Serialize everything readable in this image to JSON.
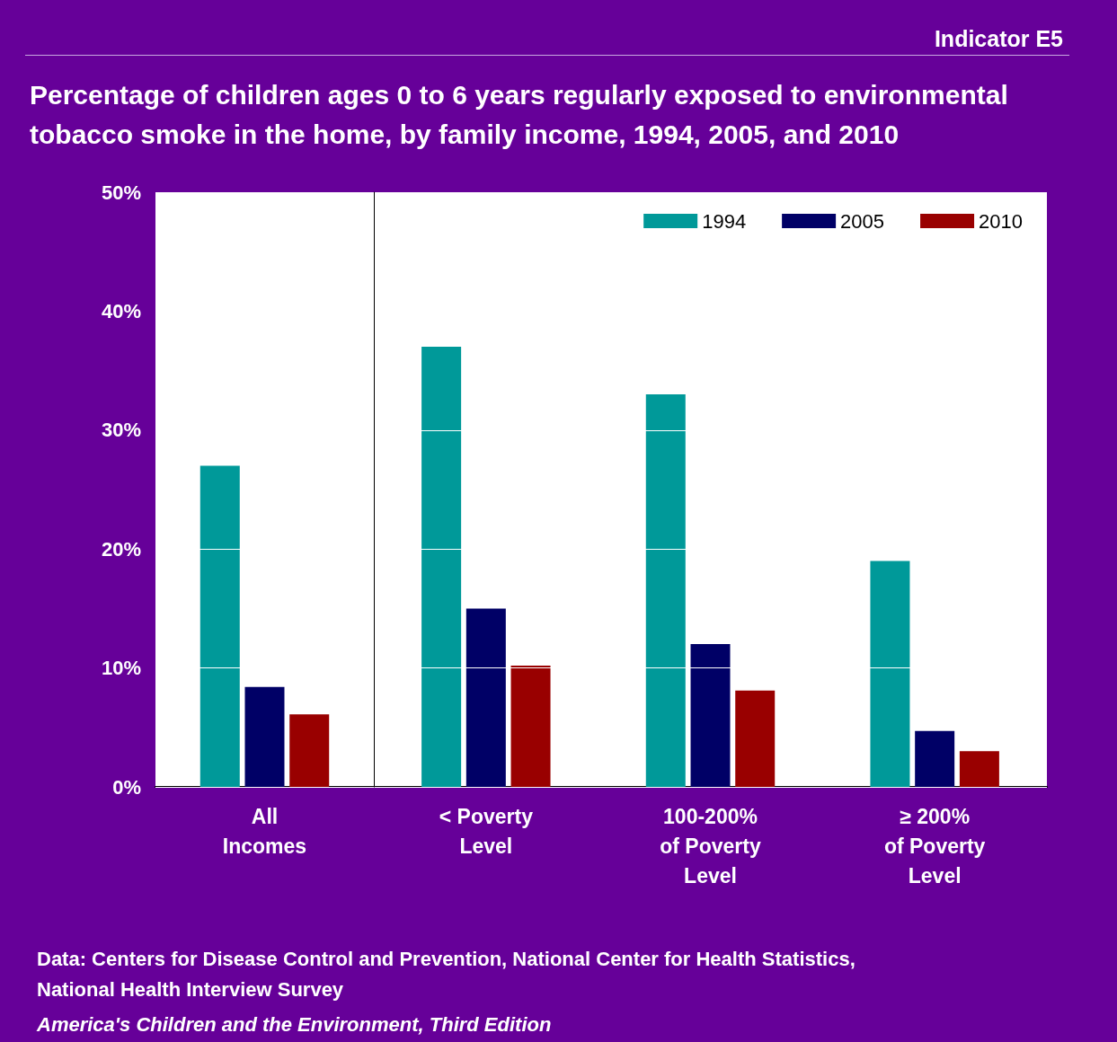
{
  "chart_data": [
    {
      "type": "bar",
      "title": "Percentage of children ages 0 to 6 years regularly exposed to environmental tobacco smoke in the home, by family income, 1994, 2005, and 2010",
      "categories": [
        "All\nIncomes"
      ],
      "series": [
        {
          "color": "#009999",
          "values": [
            27.0
          ]
        },
        {
          "color": "#000066",
          "values": [
            8.4
          ]
        },
        {
          "color": "#990000",
          "values": [
            6.1
          ]
        }
      ],
      "ylim": [
        0,
        50
      ],
      "yticks": [
        {
          "value": 0,
          "label": "0%"
        },
        {
          "value": 10,
          "label": "10%"
        },
        {
          "value": 20,
          "label": "20%"
        },
        {
          "value": 30,
          "label": "30%"
        },
        {
          "value": 40,
          "label": "40%"
        },
        {
          "value": 50,
          "label": "50%"
        }
      ],
      "grid": "y",
      "annotations": [
        "Indicator E5",
        "Data: Centers for Disease Control and Prevention, National Center for Health Statistics, National Health Interview Survey",
        "America's Children and the Environment, Third Edition"
      ]
    },
    {
      "type": "bar",
      "categories": [
        "< Poverty\nLevel",
        "100-200%\nof Poverty\nLevel",
        "≥ 200%\nof Poverty\nLevel"
      ],
      "series": [
        {
          "name": "1994",
          "color": "#009999",
          "values": [
            37.0,
            33.0,
            19.0
          ]
        },
        {
          "name": "2005",
          "color": "#000066",
          "values": [
            15.0,
            12.0,
            4.7
          ]
        },
        {
          "name": "2010",
          "color": "#990000",
          "values": [
            10.2,
            8.1,
            3.0
          ]
        }
      ],
      "ylim": [
        0,
        50
      ],
      "yticks": [
        0,
        10,
        20,
        30,
        40,
        50
      ],
      "tick_labels": "x",
      "grid": "y",
      "legend": "top right"
    }
  ]
}
